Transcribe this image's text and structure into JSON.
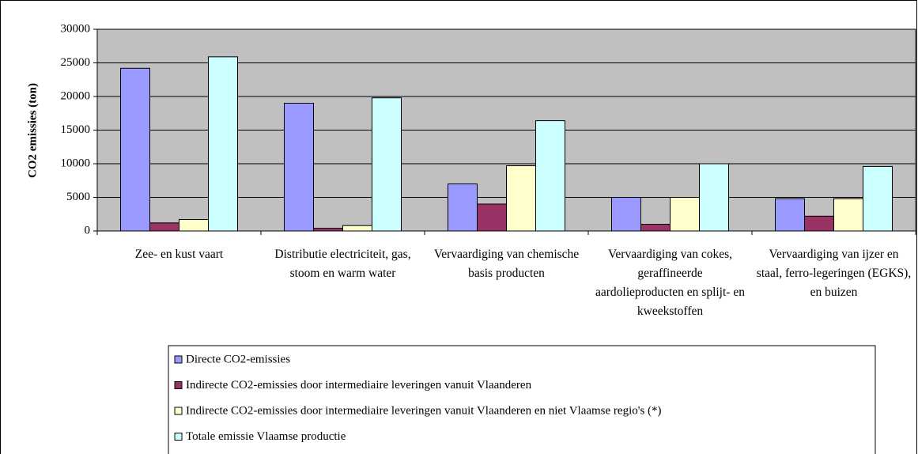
{
  "chart_data": {
    "type": "bar",
    "y_label": "CO2 emissies (ton)",
    "categories": [
      "Zee- en kust vaart",
      "Distributie electriciteit, gas, stoom en warm water",
      "Vervaardiging van chemische basis producten",
      "Vervaardiging van cokes, geraffineerde aardolieproducten en splijt- en kweekstoffen",
      "Vervaardiging van ijzer en staal, ferro-legeringen (EGKS), en buizen"
    ],
    "series": [
      {
        "name": "Directe CO2-emissies",
        "color": "#9999ff",
        "values": [
          24200,
          19000,
          7000,
          5000,
          4800
        ]
      },
      {
        "name": "Indirecte CO2-emissies door intermediaire leveringen vanuit Vlaanderen",
        "color": "#993366",
        "values": [
          1200,
          400,
          4000,
          1000,
          2200
        ]
      },
      {
        "name": "Indirecte CO2-emissies door intermediaire leveringen vanuit Vlaanderen en niet Vlaamse regio's (*)",
        "color": "#ffffcc",
        "values": [
          1700,
          800,
          9700,
          5000,
          4800
        ]
      },
      {
        "name": "Totale emissie Vlaamse productie",
        "color": "#ccffff",
        "values": [
          25900,
          19800,
          16400,
          10000,
          9600
        ]
      }
    ],
    "ylim": [
      0,
      30000
    ],
    "yticks": [
      0,
      5000,
      10000,
      15000,
      20000,
      25000,
      30000
    ],
    "grid": true,
    "plot_background": "#c0c0c0"
  }
}
